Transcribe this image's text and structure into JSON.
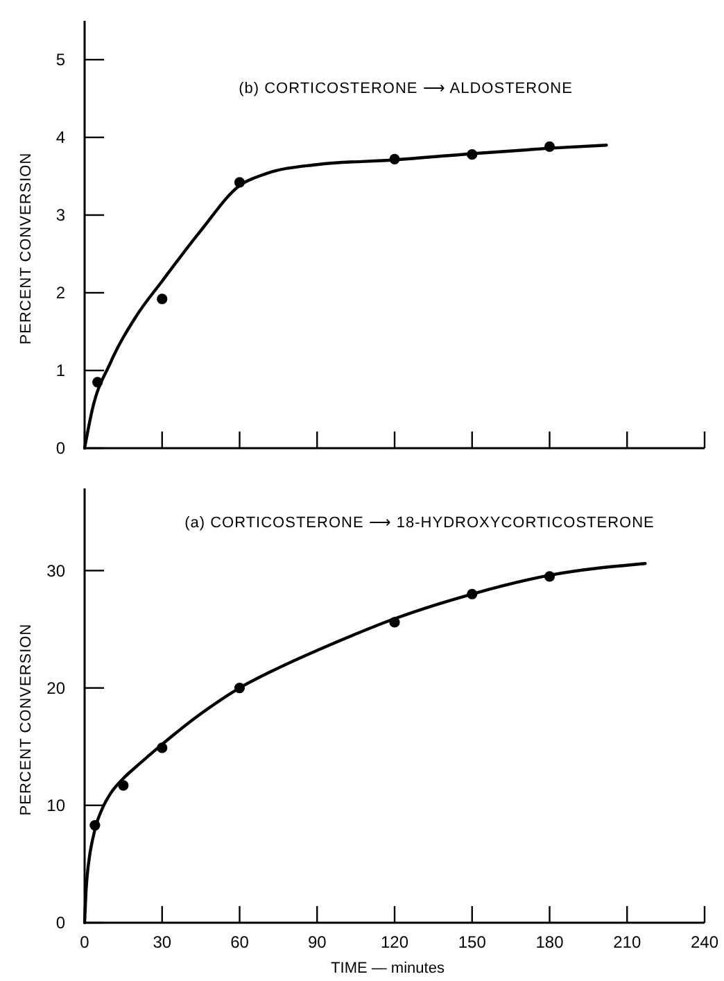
{
  "chart_data": [
    {
      "type": "scatter",
      "annotations": [
        "(b) CORTICOSTERONE ⟶ ALDOSTERONE"
      ],
      "ylabel": "PERCENT CONVERSION",
      "xlim": [
        0,
        240
      ],
      "xticks": [
        0,
        30,
        60,
        90,
        120,
        150,
        180,
        210,
        240
      ],
      "ylim": [
        0,
        5.5
      ],
      "yticks": [
        0,
        1,
        2,
        3,
        4,
        5
      ],
      "tick_labels": "y",
      "series": [
        {
          "color": "#000000",
          "marker": "circle",
          "x": [
            5,
            30,
            60,
            120,
            150,
            180
          ],
          "values": [
            0.85,
            1.92,
            3.42,
            3.72,
            3.78,
            3.88
          ]
        },
        {
          "type": "line",
          "color": "#000000",
          "line_style": "solid",
          "x": [
            0,
            3,
            10,
            20,
            30,
            45,
            60,
            70,
            90,
            120,
            150,
            180,
            202
          ],
          "values": [
            0,
            0.5,
            1.1,
            1.7,
            2.15,
            2.8,
            3.38,
            3.53,
            3.65,
            3.71,
            3.79,
            3.86,
            3.9
          ]
        }
      ]
    },
    {
      "type": "scatter",
      "annotations": [
        "(a) CORTICOSTERONE ⟶ 18-HYDROXYCORTICOSTERONE"
      ],
      "xlabel": "TIME — minutes",
      "ylabel": "PERCENT CONVERSION",
      "xlim": [
        0,
        240
      ],
      "xticks": [
        0,
        30,
        60,
        90,
        120,
        150,
        180,
        210,
        240
      ],
      "ylim": [
        0,
        37
      ],
      "yticks": [
        0,
        10,
        20,
        30
      ],
      "series": [
        {
          "color": "#000000",
          "marker": "circle",
          "x": [
            4,
            15,
            30,
            60,
            120,
            150,
            180
          ],
          "values": [
            8.3,
            11.7,
            14.9,
            20,
            25.6,
            28,
            29.5
          ]
        },
        {
          "type": "line",
          "color": "#000000",
          "line_style": "solid",
          "x": [
            0,
            0.5,
            1,
            2,
            3,
            5,
            7,
            10,
            15,
            20,
            30,
            45,
            60,
            75,
            90,
            105,
            120,
            150,
            180,
            217
          ],
          "values": [
            0,
            2.5,
            4,
            5.8,
            7,
            8.7,
            9.8,
            11,
            12.3,
            13.3,
            15.2,
            17.8,
            20,
            21.7,
            23.2,
            24.6,
            25.9,
            28,
            29.6,
            30.6
          ]
        }
      ]
    }
  ]
}
